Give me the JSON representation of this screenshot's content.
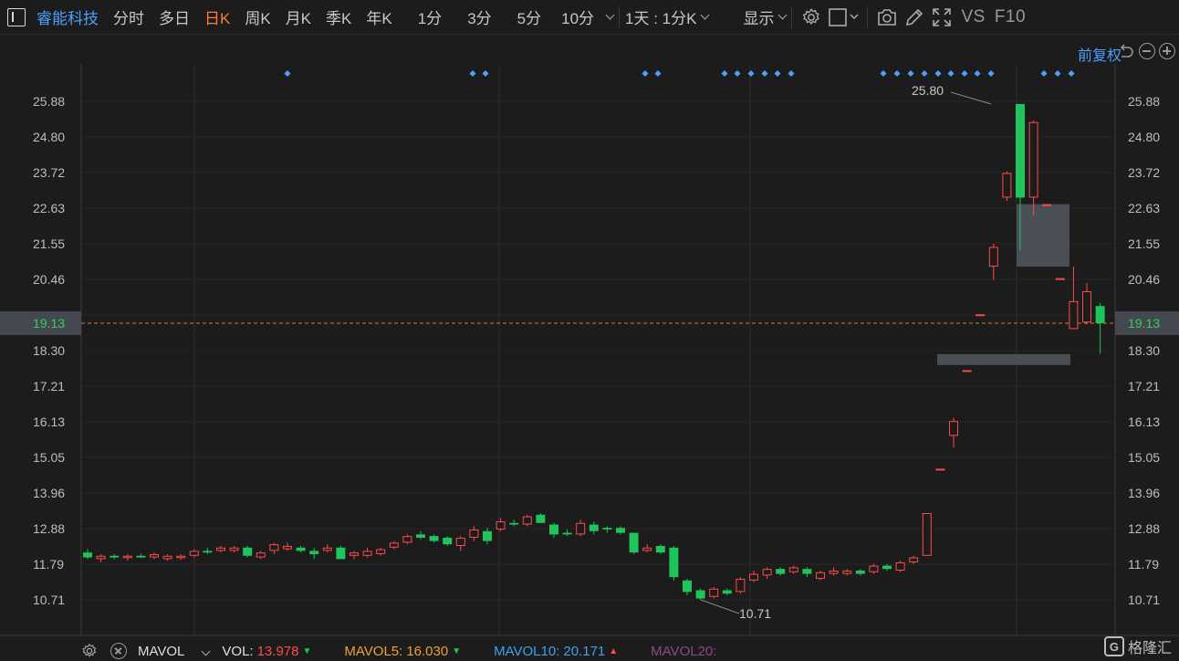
{
  "toolbar": {
    "stock_name": "睿能科技",
    "periods": [
      "分时",
      "多日",
      "日K",
      "周K",
      "月K",
      "季K",
      "年K",
      "1分",
      "3分",
      "5分"
    ],
    "active_period": "日K",
    "period_dropdown": "10分",
    "interval_dropdown": "1天 : 1分K",
    "display_dropdown": "显示",
    "vs_label": "VS",
    "f10_label": "F10",
    "icons": [
      "gear-icon",
      "rectangle-select-icon",
      "camera-icon",
      "pencil-icon",
      "fullscreen-icon"
    ]
  },
  "subheader": {
    "adjust_label": "前复权",
    "icons": [
      "undo-icon",
      "zoom-out-icon",
      "zoom-in-icon"
    ]
  },
  "y_axis_labels": [
    "25.88",
    "24.80",
    "23.72",
    "22.63",
    "21.55",
    "20.46",
    "18.30",
    "17.21",
    "16.13",
    "15.05",
    "13.96",
    "12.88",
    "11.79",
    "10.71"
  ],
  "current_price": "19.13",
  "annotations": {
    "high": "25.80",
    "low": "10.71"
  },
  "colors": {
    "up": "#ff4a4a",
    "down": "#1fc45a",
    "accent": "#4c9ffe",
    "active_tab": "#ff7b35",
    "price_line": "#e0782e"
  },
  "bottom": {
    "indicator": "MAVOL",
    "vol_label": "VOL:",
    "vol_value": "13.978",
    "mavol5_label": "MAVOL5:",
    "mavol5_value": "16.030",
    "mavol10_label": "MAVOL10:",
    "mavol10_value": "20.171",
    "mavol20_label": "MAVOL20:",
    "logo_text": "格隆汇"
  },
  "chart_data": {
    "type": "candlestick",
    "y_range": [
      10.1,
      26.6
    ],
    "candles": [
      {
        "o": 12.15,
        "h": 12.25,
        "l": 11.95,
        "c": 12.0
      },
      {
        "o": 11.95,
        "h": 12.1,
        "l": 11.85,
        "c": 12.05
      },
      {
        "o": 12.05,
        "h": 12.1,
        "l": 11.95,
        "c": 12.0
      },
      {
        "o": 11.98,
        "h": 12.1,
        "l": 11.9,
        "c": 12.05
      },
      {
        "o": 12.05,
        "h": 12.12,
        "l": 11.98,
        "c": 12.0
      },
      {
        "o": 12.0,
        "h": 12.15,
        "l": 11.95,
        "c": 12.1
      },
      {
        "o": 11.95,
        "h": 12.1,
        "l": 11.9,
        "c": 12.05
      },
      {
        "o": 11.98,
        "h": 12.1,
        "l": 11.92,
        "c": 12.05
      },
      {
        "o": 12.05,
        "h": 12.25,
        "l": 12.0,
        "c": 12.2
      },
      {
        "o": 12.2,
        "h": 12.3,
        "l": 12.1,
        "c": 12.15
      },
      {
        "o": 12.2,
        "h": 12.35,
        "l": 12.15,
        "c": 12.3
      },
      {
        "o": 12.2,
        "h": 12.35,
        "l": 12.15,
        "c": 12.3
      },
      {
        "o": 12.3,
        "h": 12.35,
        "l": 12.0,
        "c": 12.05
      },
      {
        "o": 12.0,
        "h": 12.2,
        "l": 11.95,
        "c": 12.15
      },
      {
        "o": 12.2,
        "h": 12.45,
        "l": 12.1,
        "c": 12.4
      },
      {
        "o": 12.25,
        "h": 12.45,
        "l": 12.2,
        "c": 12.35
      },
      {
        "o": 12.3,
        "h": 12.35,
        "l": 12.15,
        "c": 12.2
      },
      {
        "o": 12.2,
        "h": 12.3,
        "l": 11.95,
        "c": 12.1
      },
      {
        "o": 12.2,
        "h": 12.4,
        "l": 12.15,
        "c": 12.3
      },
      {
        "o": 12.3,
        "h": 12.35,
        "l": 11.95,
        "c": 11.95
      },
      {
        "o": 12.05,
        "h": 12.2,
        "l": 11.95,
        "c": 12.15
      },
      {
        "o": 12.05,
        "h": 12.3,
        "l": 12.0,
        "c": 12.2
      },
      {
        "o": 12.1,
        "h": 12.3,
        "l": 12.05,
        "c": 12.25
      },
      {
        "o": 12.3,
        "h": 12.5,
        "l": 12.25,
        "c": 12.45
      },
      {
        "o": 12.45,
        "h": 12.7,
        "l": 12.4,
        "c": 12.65
      },
      {
        "o": 12.7,
        "h": 12.8,
        "l": 12.55,
        "c": 12.6
      },
      {
        "o": 12.65,
        "h": 12.7,
        "l": 12.45,
        "c": 12.5
      },
      {
        "o": 12.6,
        "h": 12.65,
        "l": 12.35,
        "c": 12.4
      },
      {
        "o": 12.35,
        "h": 12.65,
        "l": 12.2,
        "c": 12.6
      },
      {
        "o": 12.6,
        "h": 12.95,
        "l": 12.5,
        "c": 12.85
      },
      {
        "o": 12.8,
        "h": 12.9,
        "l": 12.4,
        "c": 12.5
      },
      {
        "o": 12.85,
        "h": 13.2,
        "l": 12.8,
        "c": 13.1
      },
      {
        "o": 13.05,
        "h": 13.15,
        "l": 12.95,
        "c": 13.0
      },
      {
        "o": 13.0,
        "h": 13.3,
        "l": 12.95,
        "c": 13.25
      },
      {
        "o": 13.3,
        "h": 13.35,
        "l": 13.05,
        "c": 13.05
      },
      {
        "o": 13.0,
        "h": 13.05,
        "l": 12.6,
        "c": 12.7
      },
      {
        "o": 12.75,
        "h": 12.85,
        "l": 12.65,
        "c": 12.7
      },
      {
        "o": 12.7,
        "h": 13.15,
        "l": 12.65,
        "c": 13.05
      },
      {
        "o": 13.0,
        "h": 13.1,
        "l": 12.7,
        "c": 12.8
      },
      {
        "o": 12.9,
        "h": 12.95,
        "l": 12.75,
        "c": 12.85
      },
      {
        "o": 12.9,
        "h": 12.95,
        "l": 12.7,
        "c": 12.75
      },
      {
        "o": 12.75,
        "h": 12.75,
        "l": 12.1,
        "c": 12.15
      },
      {
        "o": 12.2,
        "h": 12.4,
        "l": 12.15,
        "c": 12.3
      },
      {
        "o": 12.35,
        "h": 12.4,
        "l": 12.1,
        "c": 12.15
      },
      {
        "o": 12.3,
        "h": 12.35,
        "l": 11.3,
        "c": 11.4
      },
      {
        "o": 11.3,
        "h": 11.35,
        "l": 10.85,
        "c": 10.95
      },
      {
        "o": 11.0,
        "h": 11.05,
        "l": 10.71,
        "c": 10.75
      },
      {
        "o": 10.8,
        "h": 11.1,
        "l": 10.75,
        "c": 11.05
      },
      {
        "o": 11.0,
        "h": 11.05,
        "l": 10.85,
        "c": 10.9
      },
      {
        "o": 10.95,
        "h": 11.4,
        "l": 10.9,
        "c": 11.35
      },
      {
        "o": 11.3,
        "h": 11.6,
        "l": 11.25,
        "c": 11.5
      },
      {
        "o": 11.45,
        "h": 11.7,
        "l": 11.35,
        "c": 11.65
      },
      {
        "o": 11.65,
        "h": 11.7,
        "l": 11.45,
        "c": 11.5
      },
      {
        "o": 11.55,
        "h": 11.75,
        "l": 11.5,
        "c": 11.7
      },
      {
        "o": 11.65,
        "h": 11.7,
        "l": 11.4,
        "c": 11.5
      },
      {
        "o": 11.35,
        "h": 11.6,
        "l": 11.3,
        "c": 11.55
      },
      {
        "o": 11.5,
        "h": 11.7,
        "l": 11.45,
        "c": 11.6
      },
      {
        "o": 11.5,
        "h": 11.65,
        "l": 11.45,
        "c": 11.6
      },
      {
        "o": 11.6,
        "h": 11.65,
        "l": 11.45,
        "c": 11.5
      },
      {
        "o": 11.55,
        "h": 11.8,
        "l": 11.5,
        "c": 11.75
      },
      {
        "o": 11.75,
        "h": 11.8,
        "l": 11.6,
        "c": 11.65
      },
      {
        "o": 11.6,
        "h": 11.9,
        "l": 11.55,
        "c": 11.85
      },
      {
        "o": 11.85,
        "h": 12.05,
        "l": 11.8,
        "c": 12.0
      },
      {
        "o": 12.05,
        "h": 13.35,
        "l": 12.05,
        "c": 13.35
      },
      {
        "o": 14.7,
        "h": 14.7,
        "l": 14.7,
        "c": 14.7
      },
      {
        "o": 15.7,
        "h": 16.25,
        "l": 15.35,
        "c": 16.15
      },
      {
        "o": 17.7,
        "h": 17.7,
        "l": 17.7,
        "c": 17.7
      },
      {
        "o": 19.4,
        "h": 19.4,
        "l": 19.4,
        "c": 19.4
      },
      {
        "o": 20.85,
        "h": 21.55,
        "l": 20.45,
        "c": 21.45
      },
      {
        "o": 22.95,
        "h": 23.75,
        "l": 22.85,
        "c": 23.7
      },
      {
        "o": 25.8,
        "h": 25.8,
        "l": 21.35,
        "c": 22.95
      },
      {
        "o": 22.95,
        "h": 25.3,
        "l": 22.4,
        "c": 25.25
      },
      {
        "o": 22.75,
        "h": 22.75,
        "l": 22.75,
        "c": 22.75
      },
      {
        "o": 20.5,
        "h": 20.5,
        "l": 20.5,
        "c": 20.5
      },
      {
        "o": 18.95,
        "h": 20.85,
        "l": 18.95,
        "c": 19.8
      },
      {
        "o": 19.15,
        "h": 20.35,
        "l": 19.1,
        "c": 20.1
      },
      {
        "o": 19.65,
        "h": 19.75,
        "l": 18.2,
        "c": 19.13
      }
    ]
  }
}
